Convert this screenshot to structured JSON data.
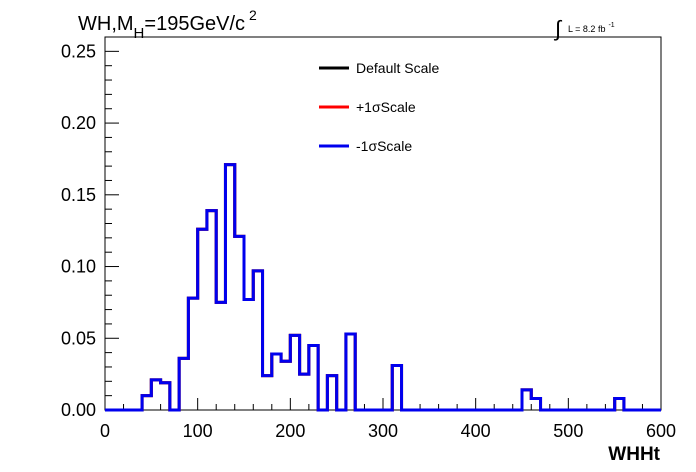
{
  "chart_data": {
    "type": "histogram",
    "title": {
      "prefix": "WH,M",
      "subscript": "H",
      "suffix": "=195GeV/c",
      "superscript": "2"
    },
    "lumi": {
      "symbol": "∫",
      "text": "L = 8.2 fb",
      "superscript": "-1"
    },
    "xlabel": "WHHt",
    "ylabel": "",
    "xlim": [
      0,
      600
    ],
    "ylim": [
      0,
      0.26
    ],
    "x_ticks": [
      0,
      100,
      200,
      300,
      400,
      500,
      600
    ],
    "x_tick_labels": [
      "0",
      "100",
      "200",
      "300",
      "400",
      "500",
      "600"
    ],
    "y_ticks": [
      0,
      0.05,
      0.1,
      0.15,
      0.2,
      0.25
    ],
    "y_tick_labels": [
      "0.00",
      "0.05",
      "0.10",
      "0.15",
      "0.20",
      "0.25"
    ],
    "bin_width": 10,
    "bin_edges_start": 0,
    "series": [
      {
        "name": "Default Scale",
        "color": "#000000",
        "values": [
          0,
          0,
          0,
          0,
          0.01,
          0.021,
          0.019,
          0,
          0.036,
          0.078,
          0.126,
          0.139,
          0.075,
          0.171,
          0.121,
          0.077,
          0.097,
          0.024,
          0.039,
          0.034,
          0.052,
          0.025,
          0.045,
          0,
          0.024,
          0,
          0.053,
          0,
          0,
          0,
          0,
          0.031,
          0,
          0,
          0,
          0,
          0,
          0,
          0,
          0,
          0,
          0,
          0,
          0,
          0,
          0.014,
          0.008,
          0,
          0,
          0,
          0,
          0,
          0,
          0,
          0,
          0.008,
          0,
          0,
          0,
          0
        ]
      },
      {
        "name": "+1σScale",
        "color": "#ff0000",
        "values": [
          0,
          0,
          0,
          0,
          0.01,
          0.021,
          0.019,
          0,
          0.036,
          0.078,
          0.126,
          0.139,
          0.075,
          0.171,
          0.121,
          0.077,
          0.097,
          0.024,
          0.039,
          0.034,
          0.052,
          0.025,
          0.045,
          0,
          0.024,
          0,
          0.053,
          0,
          0,
          0,
          0,
          0.031,
          0,
          0,
          0,
          0,
          0,
          0,
          0,
          0,
          0,
          0,
          0,
          0,
          0,
          0.014,
          0.008,
          0,
          0,
          0,
          0,
          0,
          0,
          0,
          0,
          0.008,
          0,
          0,
          0,
          0
        ]
      },
      {
        "name": "-1σScale",
        "color": "#0000ee",
        "values": [
          0,
          0,
          0,
          0,
          0.01,
          0.021,
          0.019,
          0,
          0.036,
          0.078,
          0.126,
          0.139,
          0.075,
          0.171,
          0.121,
          0.077,
          0.097,
          0.024,
          0.039,
          0.034,
          0.052,
          0.025,
          0.045,
          0,
          0.024,
          0,
          0.053,
          0,
          0,
          0,
          0,
          0.031,
          0,
          0,
          0,
          0,
          0,
          0,
          0,
          0,
          0,
          0,
          0,
          0,
          0,
          0.014,
          0.008,
          0,
          0,
          0,
          0,
          0,
          0,
          0,
          0,
          0.008,
          0,
          0,
          0,
          0
        ]
      }
    ],
    "legend_position": "top-center",
    "grid": false
  }
}
